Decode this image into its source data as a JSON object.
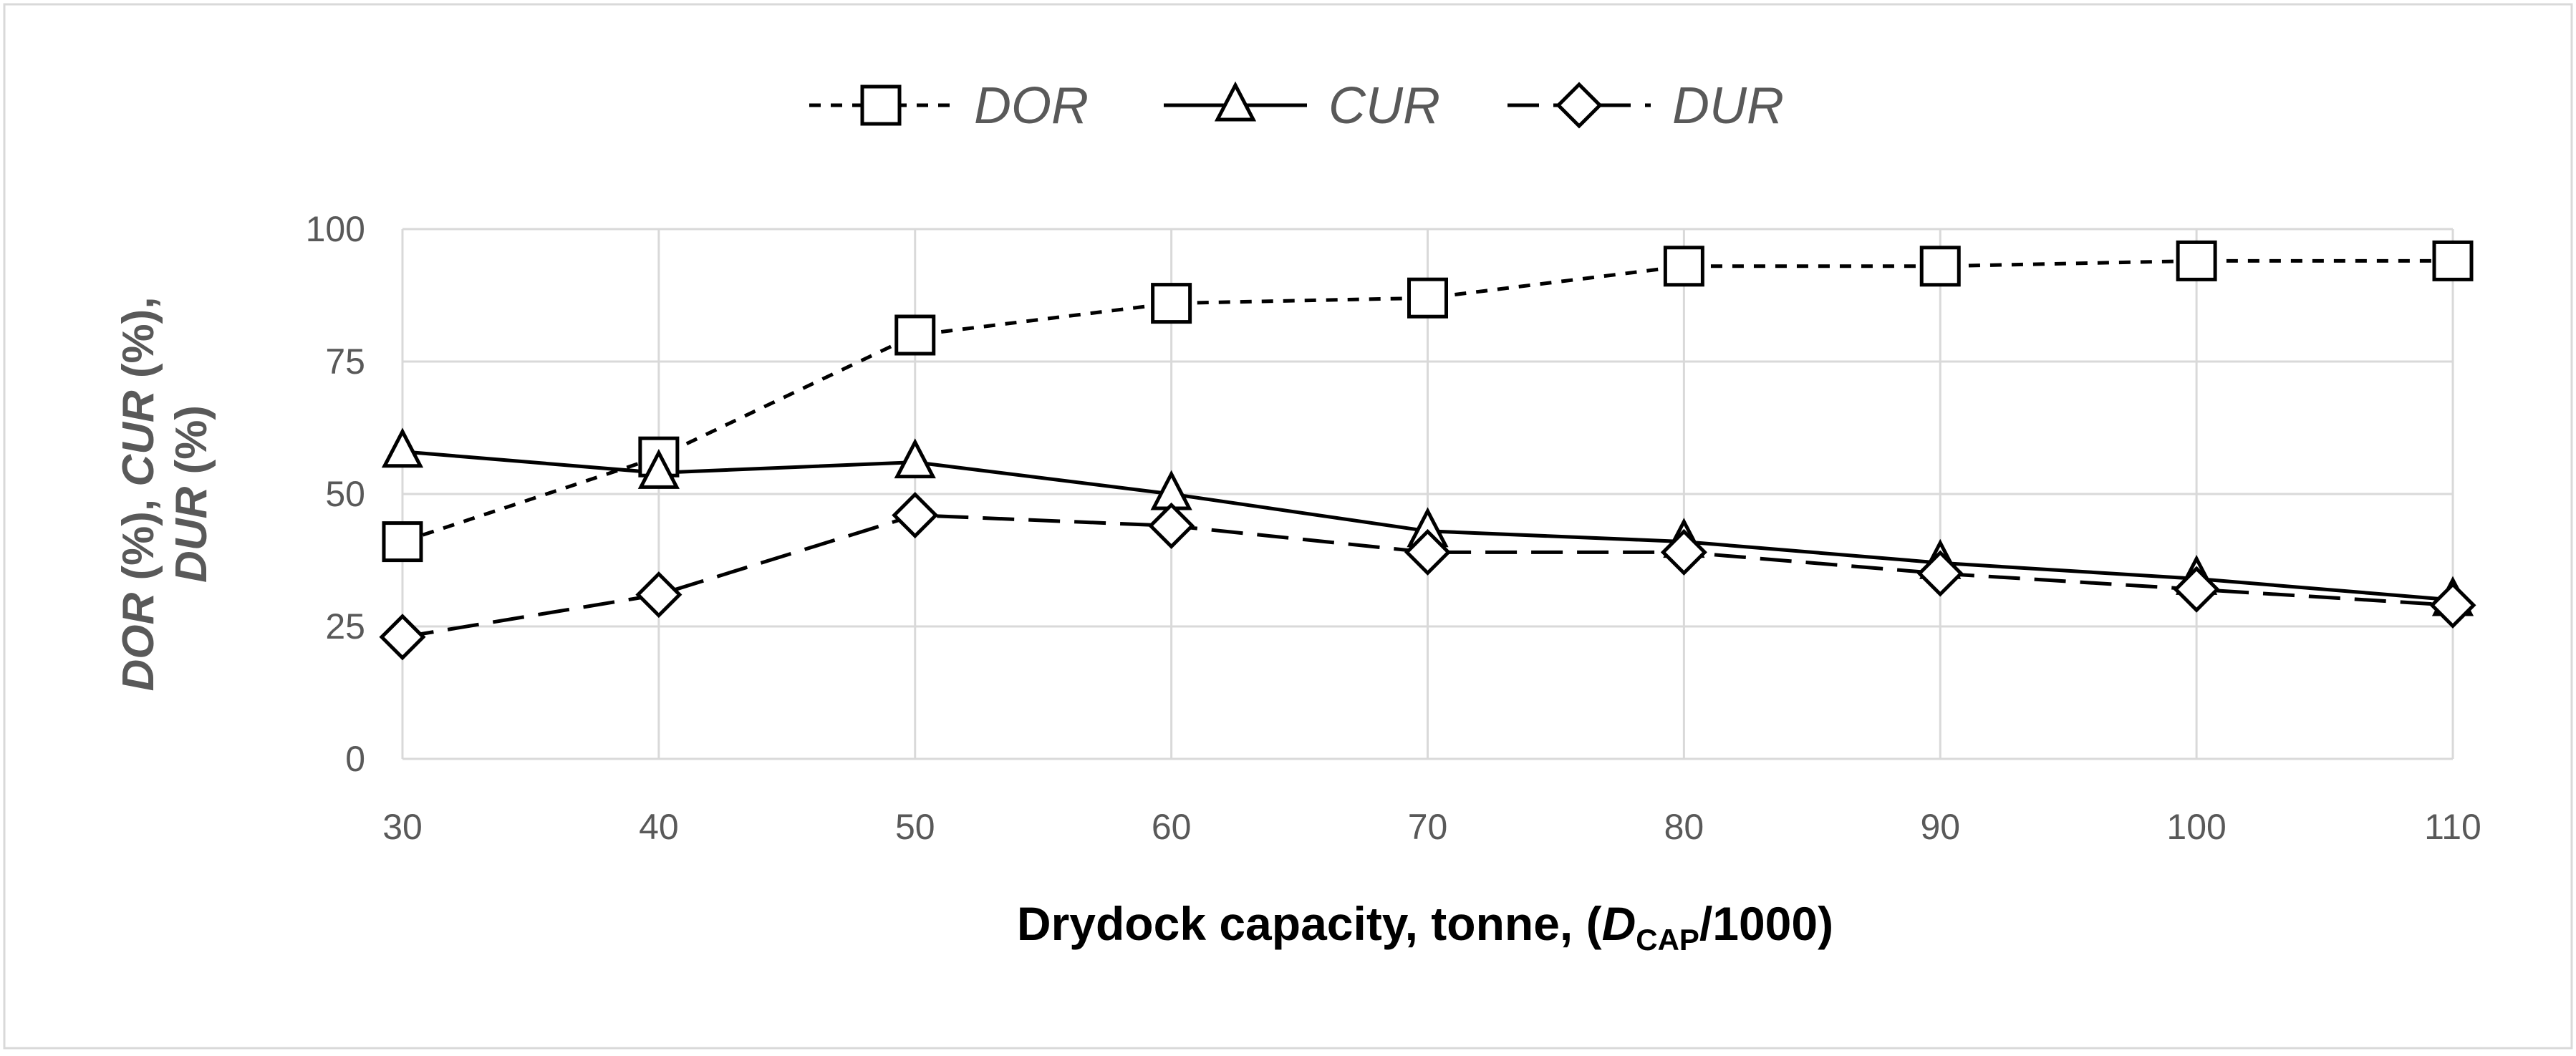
{
  "chart_data": {
    "type": "line",
    "title": "",
    "xlabel": "Drydock capacity, tonne, (",
    "xlabel_var": "D",
    "xlabel_sub": "CAP",
    "xlabel_tail": "/1000)",
    "ylabel_line1": [
      {
        "text": "DOR",
        "italic": true
      },
      {
        "text": " (%), ",
        "italic": false
      },
      {
        "text": "CUR",
        "italic": true
      },
      {
        "text": " (%),",
        "italic": false
      }
    ],
    "ylabel_line2": [
      {
        "text": "DUR",
        "italic": true
      },
      {
        "text": " (%)",
        "italic": false
      }
    ],
    "x": [
      30,
      40,
      50,
      60,
      70,
      80,
      90,
      100,
      110
    ],
    "x_tick_labels": [
      "30",
      "40",
      "50",
      "60",
      "70",
      "80",
      "90",
      "100",
      "110"
    ],
    "xlim": [
      30,
      110
    ],
    "ylim": [
      0,
      100
    ],
    "y_ticks": [
      0,
      25,
      50,
      75,
      100
    ],
    "y_tick_labels": [
      "0",
      "25",
      "50",
      "75",
      "100"
    ],
    "grid": true,
    "legend_position": "top-center",
    "series": [
      {
        "name": "DOR",
        "marker": "square",
        "line_style": "dotted-dash",
        "values": [
          41,
          57,
          80,
          86,
          87,
          93,
          93,
          94,
          94
        ]
      },
      {
        "name": "CUR",
        "marker": "triangle",
        "line_style": "solid",
        "values": [
          58,
          54,
          56,
          50,
          43,
          41,
          37,
          34,
          30
        ]
      },
      {
        "name": "DUR",
        "marker": "diamond",
        "line_style": "long-dash",
        "values": [
          23,
          31,
          46,
          44,
          39,
          39,
          35,
          32,
          29
        ]
      }
    ],
    "colors": {
      "line": "#000000",
      "grid": "#d9d9d9",
      "tick_text": "#595959",
      "legend_text": "#595959",
      "frame": "#d9d9d9",
      "axis_title": "#000000"
    }
  }
}
